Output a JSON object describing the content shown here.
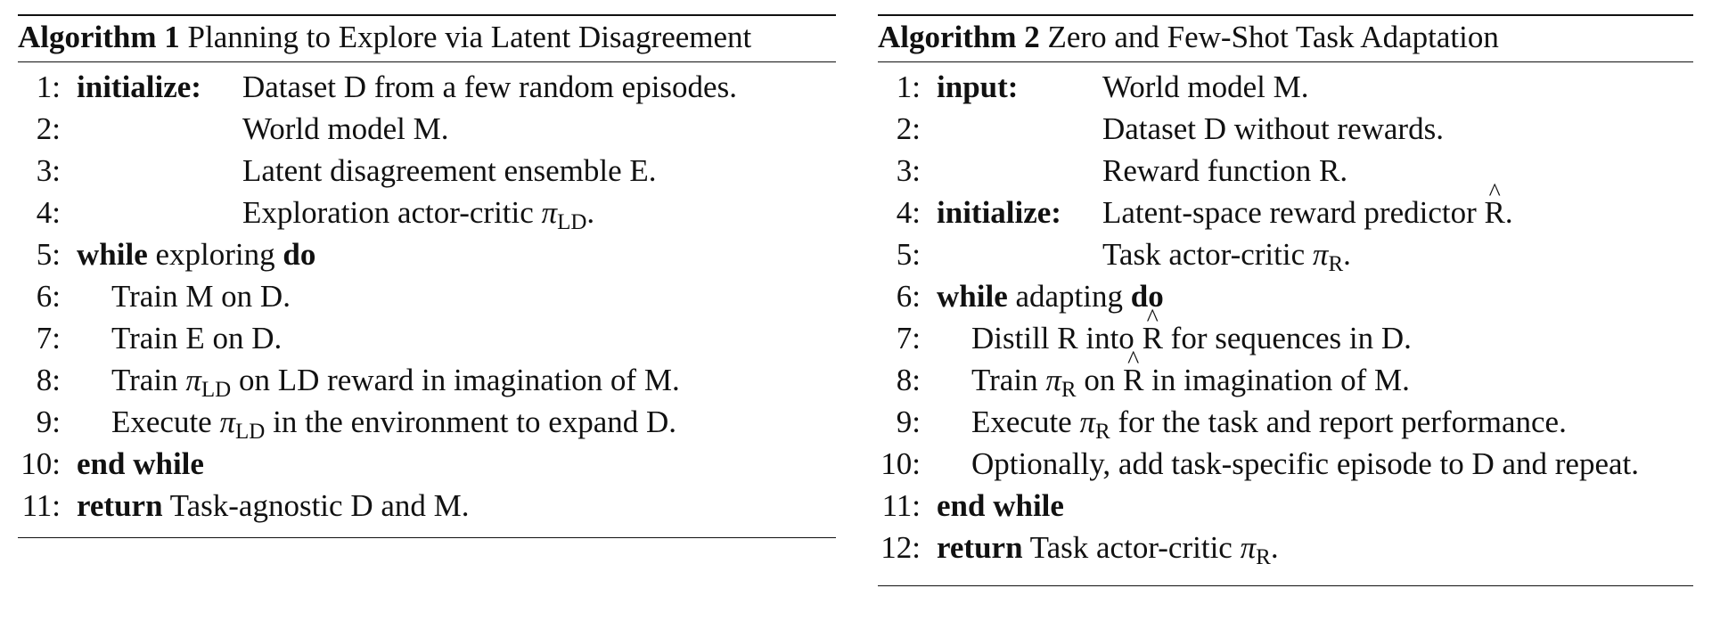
{
  "algorithm1": {
    "label": "Algorithm 1",
    "title": "Planning to Explore via Latent Disagreement",
    "lines": [
      {
        "num": "1:",
        "kw": "initialize:",
        "text": "Dataset D from a few random episodes."
      },
      {
        "num": "2:",
        "text": "World model M."
      },
      {
        "num": "3:",
        "text": "Latent disagreement ensemble E."
      },
      {
        "num": "4:",
        "text_pre": "Exploration actor-critic ",
        "pi": "π",
        "sub": "LD",
        "text_post": "."
      },
      {
        "num": "5:",
        "kw": "while",
        "text": " exploring ",
        "kw2": "do"
      },
      {
        "num": "6:",
        "text": "Train M on D."
      },
      {
        "num": "7:",
        "text": "Train E on D."
      },
      {
        "num": "8:",
        "text_pre": "Train ",
        "pi": "π",
        "sub": "LD",
        "text_post": " on LD reward in imagination of M."
      },
      {
        "num": "9:",
        "text_pre": "Execute ",
        "pi": "π",
        "sub": "LD",
        "text_post": " in the environment to expand D."
      },
      {
        "num": "10:",
        "kw": "end while"
      },
      {
        "num": "11:",
        "kw": "return",
        "text": " Task-agnostic D and M."
      }
    ]
  },
  "algorithm2": {
    "label": "Algorithm 2",
    "title": "Zero and Few-Shot Task Adaptation",
    "lines": [
      {
        "num": "1:",
        "kw": "input:",
        "text": "World model M."
      },
      {
        "num": "2:",
        "text": "Dataset D without rewards."
      },
      {
        "num": "3:",
        "text": "Reward function R."
      },
      {
        "num": "4:",
        "kw": "initialize:",
        "text_pre": "Latent-space reward predictor ",
        "hat": "R",
        "text_post": "."
      },
      {
        "num": "5:",
        "text_pre": "Task actor-critic ",
        "pi": "π",
        "sub": "R",
        "text_post": "."
      },
      {
        "num": "6:",
        "kw": "while",
        "text": " adapting ",
        "kw2": "do"
      },
      {
        "num": "7:",
        "text_pre": "Distill R into ",
        "hat": "R",
        "text_post": " for sequences in D."
      },
      {
        "num": "8:",
        "text_pre": "Train ",
        "pi": "π",
        "sub": "R",
        "text_mid": " on ",
        "hat": "R",
        "text_post": " in imagination of M."
      },
      {
        "num": "9:",
        "text_pre": "Execute ",
        "pi": "π",
        "sub": "R",
        "text_post": " for the task and report performance."
      },
      {
        "num": "10:",
        "text": "Optionally, add task-specific episode to D and repeat."
      },
      {
        "num": "11:",
        "kw": "end while"
      },
      {
        "num": "12:",
        "kw": "return",
        "text_pre": " Task actor-critic ",
        "pi": "π",
        "sub": "R",
        "text_post": "."
      }
    ]
  }
}
